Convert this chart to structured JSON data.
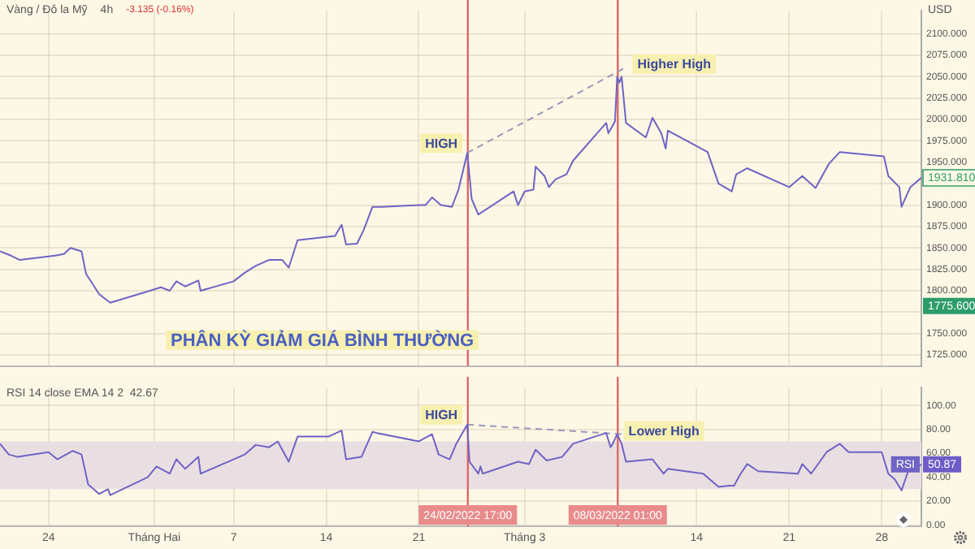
{
  "chart_data": [
    {
      "type": "line",
      "title": "Vàng / Đô la Mỹ",
      "subtitle": "4h",
      "ylabel": "USD",
      "grid": true,
      "marker": "none",
      "tick_labels": "y",
      "annotations": [
        "-3.135 (-0.16%)",
        "PHÂN KỲ GIẢM GIÁ BÌNH THƯỜNG",
        "1775.600",
        {
          "text": "HIGH",
          "x": "2022-02-24T16:00",
          "y": 1961
        },
        {
          "text": "Higher High",
          "x": "2022-03-08T16:00",
          "y": 2061
        },
        {
          "text": "1931.810",
          "x": "2022-03-31T00:00",
          "y": 1931.81
        }
      ],
      "xlim": [
        "2022-01-20T08:00",
        "2022-03-31T00:00"
      ],
      "xticks": [
        {
          "value": "2022-01-24",
          "label": null
        },
        {
          "value": "2022-02-01",
          "label": null
        },
        {
          "value": "2022-02-07",
          "label": null
        },
        {
          "value": "2022-02-14",
          "label": null
        },
        {
          "value": "2022-02-21",
          "label": null
        },
        {
          "value": "2022-03-01",
          "label": null
        },
        {
          "value": "2022-03-14",
          "label": null
        },
        {
          "value": "2022-03-21",
          "label": null
        },
        {
          "value": "2022-03-28",
          "label": null
        }
      ],
      "ylim": [
        1712,
        2127
      ],
      "yticks": [
        {
          "value": 1725,
          "label": "1725.000"
        },
        {
          "value": 1750,
          "label": "1750.000"
        },
        {
          "value": 1775,
          "label": null
        },
        {
          "value": 1800,
          "label": "1800.000"
        },
        {
          "value": 1825,
          "label": "1825.000"
        },
        {
          "value": 1850,
          "label": "1850.000"
        },
        {
          "value": 1875,
          "label": "1875.000"
        },
        {
          "value": 1900,
          "label": "1900.000"
        },
        {
          "value": 1925,
          "label": null
        },
        {
          "value": 1950,
          "label": "1950.000"
        },
        {
          "value": 1975,
          "label": "1975.000"
        },
        {
          "value": 2000,
          "label": "2000.000"
        },
        {
          "value": 2025,
          "label": "2025.000"
        },
        {
          "value": 2050,
          "label": "2050.000"
        },
        {
          "value": 2075,
          "label": "2075.000"
        },
        {
          "value": 2100,
          "label": "2100.000"
        }
      ],
      "ref_lines": [
        {
          "axis": "x",
          "value": "2022-02-24T17:00",
          "color": "#e06666"
        },
        {
          "axis": "x",
          "value": "2022-03-08T01:00",
          "color": "#e06666"
        }
      ],
      "series": [
        {
          "color": "#6f63c4",
          "x": [
            "2022-01-20T08:00",
            "2022-01-21T04:00",
            "2022-01-21T20:00",
            "2022-01-24T12:00",
            "2022-01-25T04:00",
            "2022-01-25T16:00",
            "2022-01-26T12:00",
            "2022-01-26T20:00",
            "2022-01-27T20:00",
            "2022-01-28T16:00",
            "2022-01-31T16:00",
            "2022-02-01T12:00",
            "2022-02-02T04:00",
            "2022-02-02T16:00",
            "2022-02-03T08:00",
            "2022-02-04T08:00",
            "2022-02-04T12:00",
            "2022-02-07T00:00",
            "2022-02-07T20:00",
            "2022-02-08T16:00",
            "2022-02-09T16:00",
            "2022-02-10T16:00",
            "2022-02-11T04:00",
            "2022-02-11T20:00",
            "2022-02-14T16:00",
            "2022-02-15T04:00",
            "2022-02-15T12:00",
            "2022-02-16T08:00",
            "2022-02-16T20:00",
            "2022-02-17T12:00",
            "2022-02-18T04:00",
            "2022-02-21T00:00",
            "2022-02-21T12:00",
            "2022-02-22T00:00",
            "2022-02-22T16:00",
            "2022-02-23T12:00",
            "2022-02-24T00:00",
            "2022-02-24T16:00",
            "2022-02-25T00:00",
            "2022-02-25T12:00",
            "2022-02-28T04:00",
            "2022-02-28T12:00",
            "2022-03-01T00:00",
            "2022-03-01T16:00",
            "2022-03-01T20:00",
            "2022-03-02T12:00",
            "2022-03-02T20:00",
            "2022-03-03T08:00",
            "2022-03-04T04:00",
            "2022-03-04T16:00",
            "2022-03-07T04:00",
            "2022-03-07T08:00",
            "2022-03-07T16:00",
            "2022-03-07T20:00",
            "2022-03-08T00:00",
            "2022-03-08T04:00",
            "2022-03-08T08:00",
            "2022-03-08T16:00",
            "2022-03-10T04:00",
            "2022-03-10T16:00",
            "2022-03-11T08:00",
            "2022-03-11T16:00",
            "2022-03-11T20:00",
            "2022-03-14T20:00",
            "2022-03-15T16:00",
            "2022-03-16T16:00",
            "2022-03-17T00:00",
            "2022-03-17T20:00",
            "2022-03-21T00:00",
            "2022-03-22T00:00",
            "2022-03-23T00:00",
            "2022-03-24T00:00",
            "2022-03-24T20:00",
            "2022-03-28T04:00",
            "2022-03-28T12:00",
            "2022-03-29T08:00",
            "2022-03-29T12:00",
            "2022-03-30T04:00",
            "2022-03-31T00:00"
          ],
          "values": [
            1846,
            1841,
            1836,
            1841,
            1843,
            1850,
            1846,
            1820,
            1796,
            1786,
            1800,
            1804,
            1800,
            1811,
            1805,
            1812,
            1800,
            1811,
            1821,
            1829,
            1836,
            1836,
            1827,
            1859,
            1864,
            1877,
            1854,
            1855,
            1871,
            1898,
            1898,
            1900,
            1900,
            1909,
            1900,
            1898,
            1918,
            1961,
            1907,
            1889,
            1916,
            1900,
            1916,
            1918,
            1945,
            1934,
            1921,
            1930,
            1936,
            1952,
            1996,
            1984,
            1993,
            1998,
            2050,
            2043,
            2050,
            1996,
            1979,
            2002,
            1984,
            1966,
            1987,
            1962,
            1925,
            1916,
            1936,
            1943,
            1921,
            1934,
            1920,
            1948,
            1962,
            1957,
            1934,
            1921,
            1898,
            1921,
            1932
          ]
        },
        {
          "color": "#9a98b8",
          "line_style": "dashed",
          "x": [
            "2022-02-24T16:00",
            "2022-03-08T16:00"
          ],
          "values": [
            1961,
            2061
          ]
        }
      ]
    },
    {
      "type": "line",
      "title": "RSI 14 close EMA 14 2  42.67",
      "grid": true,
      "marker": "none",
      "annotations": [
        {
          "text": "HIGH",
          "x": "2022-02-24T16:00",
          "y": 84
        },
        {
          "text": "Lower High",
          "x": "2022-03-08T00:00",
          "y": 76
        },
        {
          "text": "50.87",
          "x": "2022-03-31T00:00",
          "y": 50.87
        }
      ],
      "xlim": [
        "2022-01-20T08:00",
        "2022-03-31T00:00"
      ],
      "xticks": [
        {
          "value": "2022-01-24",
          "label": "24"
        },
        {
          "value": "2022-02-01",
          "label": "Tháng Hai"
        },
        {
          "value": "2022-02-07",
          "label": "7"
        },
        {
          "value": "2022-02-14",
          "label": "14"
        },
        {
          "value": "2022-02-21",
          "label": "21"
        },
        {
          "value": "2022-03-01",
          "label": "Tháng 3"
        },
        {
          "value": "2022-03-14",
          "label": "14"
        },
        {
          "value": "2022-03-21",
          "label": "21"
        },
        {
          "value": "2022-03-28",
          "label": "28"
        }
      ],
      "ylim": [
        -1,
        115
      ],
      "yticks": [
        {
          "value": 0,
          "label": "0.00"
        },
        {
          "value": 20,
          "label": "20.00"
        },
        {
          "value": 40,
          "label": "40.00"
        },
        {
          "value": 60,
          "label": "60.00"
        },
        {
          "value": 80,
          "label": "80.00"
        },
        {
          "value": 100,
          "label": "100.00"
        }
      ],
      "bands": [
        {
          "axis": "y",
          "from": 30,
          "to": 70,
          "color": "#e9dfe2"
        }
      ],
      "ref_lines": [
        {
          "axis": "x",
          "value": "2022-02-24T17:00",
          "label": "24/02/2022 17:00",
          "color": "#e06666"
        },
        {
          "axis": "x",
          "value": "2022-03-08T01:00",
          "label": "08/03/2022 01:00",
          "color": "#e06666"
        }
      ],
      "series": [
        {
          "name": "RSI",
          "color": "#6f63c4",
          "x": [
            "2022-01-20T08:00",
            "2022-01-21T00:00",
            "2022-01-21T16:00",
            "2022-01-24T00:00",
            "2022-01-24T16:00",
            "2022-01-25T12:00",
            "2022-01-25T20:00",
            "2022-01-26T12:00",
            "2022-01-27T00:00",
            "2022-01-27T20:00",
            "2022-01-28T12:00",
            "2022-01-28T16:00",
            "2022-01-31T12:00",
            "2022-02-01T04:00",
            "2022-02-02T04:00",
            "2022-02-02T16:00",
            "2022-02-03T08:00",
            "2022-02-04T08:00",
            "2022-02-04T12:00",
            "2022-02-07T00:00",
            "2022-02-07T20:00",
            "2022-02-08T16:00",
            "2022-02-09T16:00",
            "2022-02-10T08:00",
            "2022-02-11T04:00",
            "2022-02-11T20:00",
            "2022-02-14T04:00",
            "2022-02-15T04:00",
            "2022-02-15T12:00",
            "2022-02-16T16:00",
            "2022-02-17T12:00",
            "2022-02-17T20:00",
            "2022-02-21T00:00",
            "2022-02-22T00:00",
            "2022-02-22T12:00",
            "2022-02-23T08:00",
            "2022-02-23T20:00",
            "2022-02-24T16:00",
            "2022-02-24T20:00",
            "2022-02-25T12:00",
            "2022-02-25T16:00",
            "2022-02-25T20:00",
            "2022-02-28T12:00",
            "2022-03-01T08:00",
            "2022-03-01T20:00",
            "2022-03-02T16:00",
            "2022-03-03T20:00",
            "2022-03-04T16:00",
            "2022-03-07T04:00",
            "2022-03-07T12:00",
            "2022-03-07T16:00",
            "2022-03-08T00:00",
            "2022-03-08T08:00",
            "2022-03-08T16:00",
            "2022-03-10T16:00",
            "2022-03-11T12:00",
            "2022-03-11T20:00",
            "2022-03-14T12:00",
            "2022-03-15T16:00",
            "2022-03-16T12:00",
            "2022-03-16T20:00",
            "2022-03-17T08:00",
            "2022-03-17T20:00",
            "2022-03-18T16:00",
            "2022-03-21T16:00",
            "2022-03-22T00:00",
            "2022-03-22T16:00",
            "2022-03-23T20:00",
            "2022-03-24T20:00",
            "2022-03-25T12:00",
            "2022-03-28T00:00",
            "2022-03-28T12:00",
            "2022-03-29T00:00",
            "2022-03-29T12:00",
            "2022-03-30T00:00",
            "2022-03-30T16:00",
            "2022-03-31T00:00"
          ],
          "values": [
            68,
            59,
            57,
            61,
            55,
            60,
            62,
            59,
            34,
            26,
            30,
            25,
            40,
            49,
            43,
            55,
            47,
            57,
            43,
            55,
            59,
            67,
            65,
            70,
            53,
            74,
            74,
            79,
            55,
            57,
            78,
            77,
            70,
            76,
            59,
            55,
            68,
            84,
            53,
            43,
            49,
            43,
            53,
            51,
            63,
            54,
            57,
            68,
            77,
            65,
            68,
            76,
            68,
            53,
            55,
            43,
            47,
            43,
            32,
            33,
            33,
            43,
            51,
            45,
            43,
            51,
            43,
            61,
            68,
            61,
            61,
            43,
            38,
            29,
            45,
            47,
            51
          ]
        },
        {
          "color": "#9a98b8",
          "line_style": "dashed",
          "x": [
            "2022-02-24T16:00",
            "2022-03-14T08:00"
          ],
          "values": [
            84,
            72
          ]
        }
      ]
    }
  ]
}
